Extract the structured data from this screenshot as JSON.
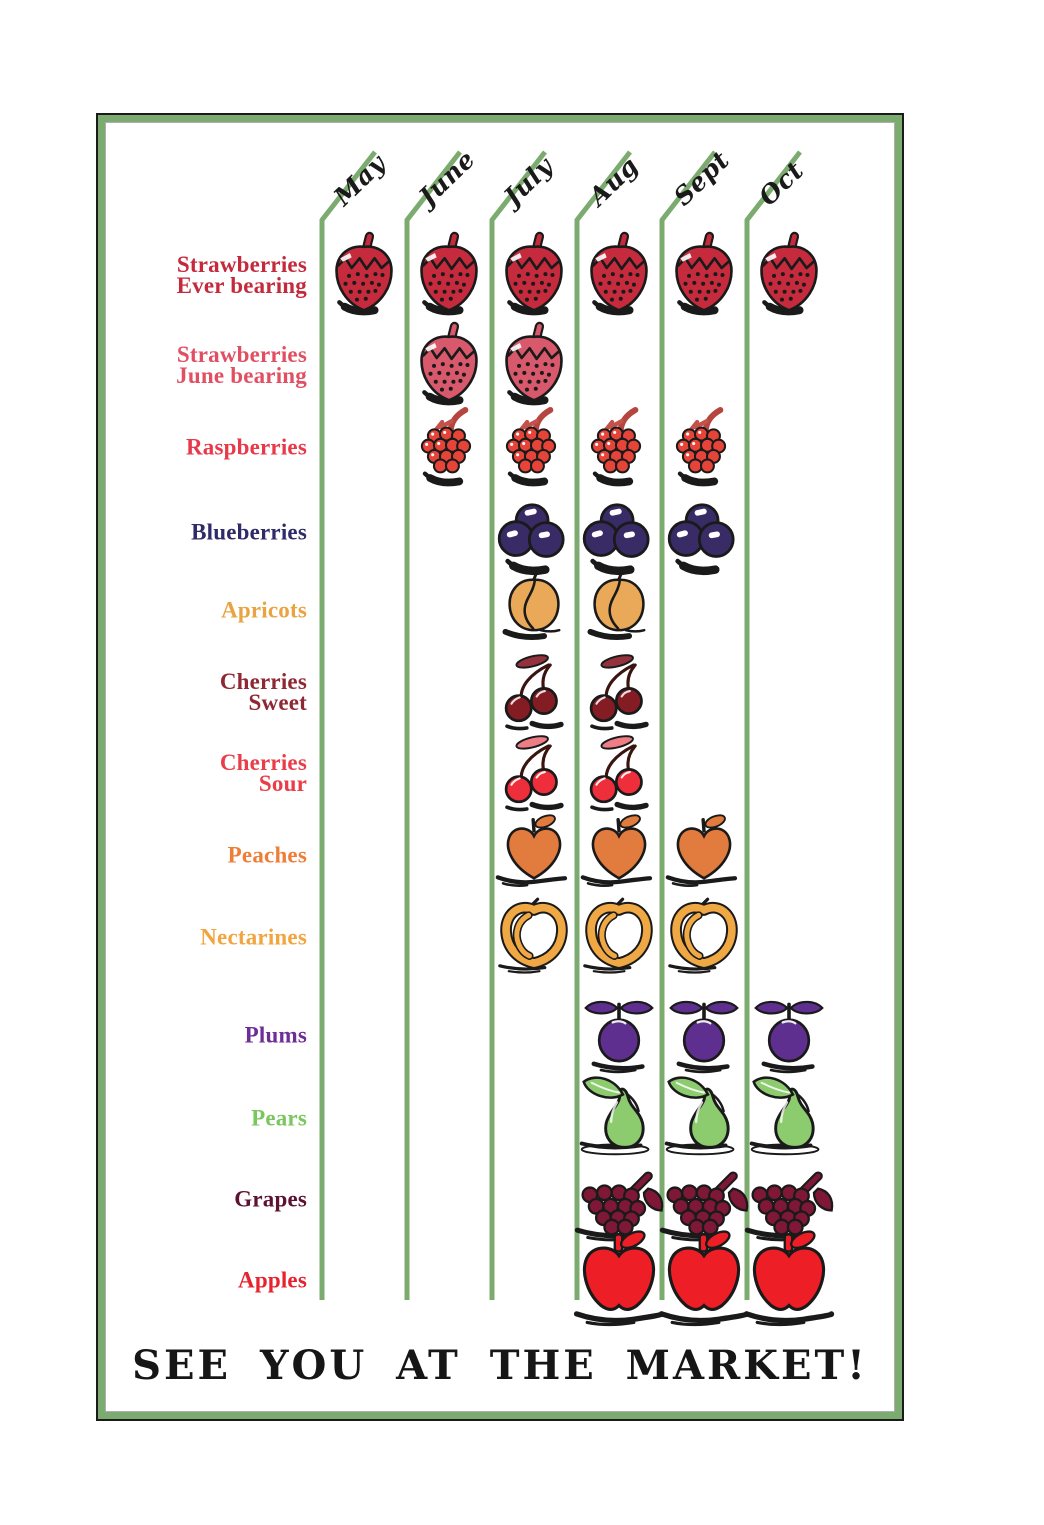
{
  "chart_data": {
    "type": "table",
    "title": "SEE YOU AT THE MARKET!",
    "categories": [
      "May",
      "June",
      "July",
      "Aug",
      "Sept",
      "Oct"
    ],
    "legend_position": "none",
    "grid": "bent-month-column-dividers",
    "rows": [
      {
        "id": "strawberries-ever-bearing",
        "label_lines": [
          "Strawberries",
          "Ever bearing"
        ],
        "label_color": "#c42a3c",
        "icon": "strawberry",
        "available": [
          "May",
          "June",
          "July",
          "Aug",
          "Sept",
          "Oct"
        ]
      },
      {
        "id": "strawberries-june-bearing",
        "label_lines": [
          "Strawberries",
          "June bearing"
        ],
        "label_color": "#e14f62",
        "icon": "strawberry-light",
        "available": [
          "June",
          "July"
        ]
      },
      {
        "id": "raspberries",
        "label_lines": [
          "Raspberries"
        ],
        "label_color": "#e8394a",
        "icon": "raspberry",
        "available": [
          "June",
          "July",
          "Aug",
          "Sept"
        ]
      },
      {
        "id": "blueberries",
        "label_lines": [
          "Blueberries"
        ],
        "label_color": "#2f2a68",
        "icon": "blueberries",
        "available": [
          "July",
          "Aug",
          "Sept"
        ]
      },
      {
        "id": "apricots",
        "label_lines": [
          "Apricots"
        ],
        "label_color": "#eaa342",
        "icon": "apricot",
        "available": [
          "July",
          "Aug"
        ]
      },
      {
        "id": "cherries-sweet",
        "label_lines": [
          "Cherries",
          "Sweet"
        ],
        "label_color": "#8e2834",
        "icon": "cherries-dark",
        "available": [
          "July",
          "Aug"
        ]
      },
      {
        "id": "cherries-sour",
        "label_lines": [
          "Cherries",
          "Sour"
        ],
        "label_color": "#ea3d4a",
        "icon": "cherries-bright",
        "available": [
          "July",
          "Aug"
        ]
      },
      {
        "id": "peaches",
        "label_lines": [
          "Peaches"
        ],
        "label_color": "#ee7e37",
        "icon": "peach",
        "available": [
          "July",
          "Aug",
          "Sept"
        ]
      },
      {
        "id": "nectarines",
        "label_lines": [
          "Nectarines"
        ],
        "label_color": "#f2a43e",
        "icon": "nectarine",
        "available": [
          "July",
          "Aug",
          "Sept"
        ]
      },
      {
        "id": "plums",
        "label_lines": [
          "Plums"
        ],
        "label_color": "#6f2d96",
        "icon": "plum",
        "available": [
          "Aug",
          "Sept",
          "Oct"
        ]
      },
      {
        "id": "pears",
        "label_lines": [
          "Pears"
        ],
        "label_color": "#79c75e",
        "icon": "pear",
        "available": [
          "Aug",
          "Sept",
          "Oct"
        ]
      },
      {
        "id": "grapes",
        "label_lines": [
          "Grapes"
        ],
        "label_color": "#5b1331",
        "icon": "grapes",
        "available": [
          "Aug",
          "Sept",
          "Oct"
        ]
      },
      {
        "id": "apples",
        "label_lines": [
          "Apples"
        ],
        "label_color": "#e6242f",
        "icon": "apple",
        "available": [
          "Aug",
          "Sept",
          "Oct"
        ]
      }
    ]
  },
  "colors": {
    "frame_green": "#7cab70",
    "divider_green": "#7cab70",
    "ink_black": "#1a1a1a",
    "background": "#ffffff"
  },
  "icon_colors": {
    "strawberry": "#c62b3d",
    "strawberry-light": "#d8596b",
    "raspberry": "#e74439",
    "blueberries": "#392b66",
    "apricot": "#e9a959",
    "cherries-dark": "#841c24",
    "cherries-bright": "#ee2e3a",
    "peach": "#e17c3e",
    "nectarine": "#f0a844",
    "plum": "#5f2f90",
    "pear": "#8ccb6e",
    "grapes": "#7e1836",
    "apple": "#ee1e26"
  }
}
